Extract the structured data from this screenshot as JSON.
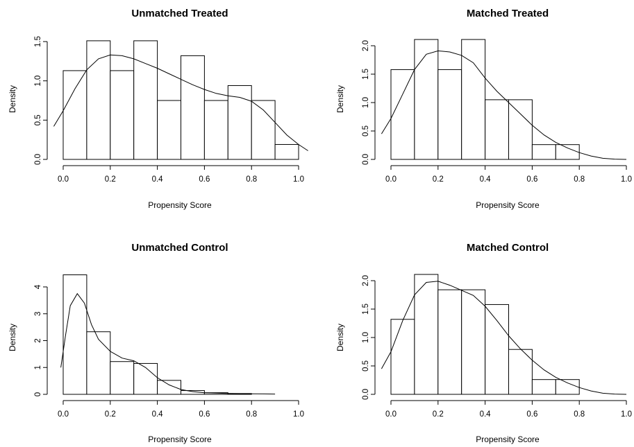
{
  "chart_data": [
    {
      "type": "bar",
      "title": "Unmatched Treated",
      "xlabel": "Propensity Score",
      "ylabel": "Density",
      "x_ticks": [
        "0.0",
        "0.2",
        "0.4",
        "0.6",
        "0.8",
        "1.0"
      ],
      "y_ticks": [
        "0.0",
        "0.5",
        "1.0",
        "1.5"
      ],
      "xlim": [
        0,
        1
      ],
      "ylim": [
        0,
        1.5
      ],
      "bins": [
        {
          "x0": 0.0,
          "x1": 0.1,
          "value": 1.13
        },
        {
          "x0": 0.1,
          "x1": 0.2,
          "value": 1.51
        },
        {
          "x0": 0.2,
          "x1": 0.3,
          "value": 1.13
        },
        {
          "x0": 0.3,
          "x1": 0.4,
          "value": 1.51
        },
        {
          "x0": 0.4,
          "x1": 0.5,
          "value": 0.75
        },
        {
          "x0": 0.5,
          "x1": 0.6,
          "value": 1.32
        },
        {
          "x0": 0.6,
          "x1": 0.7,
          "value": 0.75
        },
        {
          "x0": 0.7,
          "x1": 0.8,
          "value": 0.94
        },
        {
          "x0": 0.8,
          "x1": 0.9,
          "value": 0.75
        },
        {
          "x0": 0.9,
          "x1": 1.0,
          "value": 0.19
        }
      ],
      "density_curve": [
        [
          -0.04,
          0.42
        ],
        [
          0.0,
          0.62
        ],
        [
          0.05,
          0.9
        ],
        [
          0.1,
          1.14
        ],
        [
          0.15,
          1.28
        ],
        [
          0.2,
          1.33
        ],
        [
          0.25,
          1.32
        ],
        [
          0.3,
          1.28
        ],
        [
          0.35,
          1.22
        ],
        [
          0.4,
          1.16
        ],
        [
          0.45,
          1.09
        ],
        [
          0.5,
          1.02
        ],
        [
          0.55,
          0.95
        ],
        [
          0.6,
          0.89
        ],
        [
          0.65,
          0.84
        ],
        [
          0.7,
          0.81
        ],
        [
          0.75,
          0.79
        ],
        [
          0.8,
          0.74
        ],
        [
          0.85,
          0.63
        ],
        [
          0.9,
          0.47
        ],
        [
          0.95,
          0.31
        ],
        [
          1.0,
          0.19
        ],
        [
          1.04,
          0.11
        ]
      ]
    },
    {
      "type": "bar",
      "title": "Matched Treated",
      "xlabel": "Propensity Score",
      "ylabel": "Density",
      "x_ticks": [
        "0.0",
        "0.2",
        "0.4",
        "0.6",
        "0.8",
        "1.0"
      ],
      "y_ticks": [
        "0.0",
        "0.5",
        "1.0",
        "1.5",
        "2.0"
      ],
      "xlim": [
        0,
        1
      ],
      "ylim": [
        0,
        2.0
      ],
      "bins": [
        {
          "x0": 0.0,
          "x1": 0.1,
          "value": 1.58
        },
        {
          "x0": 0.1,
          "x1": 0.2,
          "value": 2.11
        },
        {
          "x0": 0.2,
          "x1": 0.3,
          "value": 1.58
        },
        {
          "x0": 0.3,
          "x1": 0.4,
          "value": 2.11
        },
        {
          "x0": 0.4,
          "x1": 0.5,
          "value": 1.05
        },
        {
          "x0": 0.5,
          "x1": 0.6,
          "value": 1.05
        },
        {
          "x0": 0.6,
          "x1": 0.7,
          "value": 0.26
        },
        {
          "x0": 0.7,
          "x1": 0.8,
          "value": 0.26
        }
      ],
      "density_curve": [
        [
          -0.04,
          0.45
        ],
        [
          0.0,
          0.72
        ],
        [
          0.05,
          1.15
        ],
        [
          0.1,
          1.58
        ],
        [
          0.15,
          1.85
        ],
        [
          0.2,
          1.91
        ],
        [
          0.25,
          1.89
        ],
        [
          0.3,
          1.83
        ],
        [
          0.35,
          1.7
        ],
        [
          0.4,
          1.43
        ],
        [
          0.45,
          1.2
        ],
        [
          0.5,
          1.0
        ],
        [
          0.55,
          0.8
        ],
        [
          0.6,
          0.6
        ],
        [
          0.65,
          0.43
        ],
        [
          0.7,
          0.3
        ],
        [
          0.75,
          0.2
        ],
        [
          0.8,
          0.12
        ],
        [
          0.85,
          0.06
        ],
        [
          0.9,
          0.02
        ],
        [
          0.95,
          0.005
        ],
        [
          1.0,
          0.0
        ]
      ]
    },
    {
      "type": "bar",
      "title": "Unmatched Control",
      "xlabel": "Propensity Score",
      "ylabel": "Density",
      "x_ticks": [
        "0.0",
        "0.2",
        "0.4",
        "0.6",
        "0.8",
        "1.0"
      ],
      "y_ticks": [
        "0",
        "1",
        "2",
        "3",
        "4"
      ],
      "xlim": [
        0,
        1
      ],
      "ylim": [
        0,
        4
      ],
      "bins": [
        {
          "x0": 0.0,
          "x1": 0.1,
          "value": 4.45
        },
        {
          "x0": 0.1,
          "x1": 0.2,
          "value": 2.33
        },
        {
          "x0": 0.2,
          "x1": 0.3,
          "value": 1.22
        },
        {
          "x0": 0.3,
          "x1": 0.4,
          "value": 1.15
        },
        {
          "x0": 0.4,
          "x1": 0.5,
          "value": 0.52
        },
        {
          "x0": 0.5,
          "x1": 0.6,
          "value": 0.14
        },
        {
          "x0": 0.6,
          "x1": 0.7,
          "value": 0.06
        },
        {
          "x0": 0.7,
          "x1": 0.8,
          "value": 0.03
        }
      ],
      "density_curve": [
        [
          -0.01,
          1.0
        ],
        [
          0.01,
          2.2
        ],
        [
          0.03,
          3.3
        ],
        [
          0.06,
          3.75
        ],
        [
          0.09,
          3.4
        ],
        [
          0.12,
          2.6
        ],
        [
          0.15,
          2.05
        ],
        [
          0.2,
          1.6
        ],
        [
          0.25,
          1.35
        ],
        [
          0.3,
          1.25
        ],
        [
          0.35,
          1.0
        ],
        [
          0.4,
          0.62
        ],
        [
          0.45,
          0.35
        ],
        [
          0.5,
          0.18
        ],
        [
          0.55,
          0.1
        ],
        [
          0.6,
          0.06
        ],
        [
          0.7,
          0.03
        ],
        [
          0.8,
          0.02
        ],
        [
          0.9,
          0.01
        ]
      ]
    },
    {
      "type": "bar",
      "title": "Matched Control",
      "xlabel": "Propensity Score",
      "ylabel": "Density",
      "x_ticks": [
        "0.0",
        "0.2",
        "0.4",
        "0.6",
        "0.8",
        "1.0"
      ],
      "y_ticks": [
        "0.0",
        "0.5",
        "1.0",
        "1.5",
        "2.0"
      ],
      "xlim": [
        0,
        1
      ],
      "ylim": [
        0,
        2.0
      ],
      "bins": [
        {
          "x0": 0.0,
          "x1": 0.1,
          "value": 1.32
        },
        {
          "x0": 0.1,
          "x1": 0.2,
          "value": 2.11
        },
        {
          "x0": 0.2,
          "x1": 0.3,
          "value": 1.84
        },
        {
          "x0": 0.3,
          "x1": 0.4,
          "value": 1.84
        },
        {
          "x0": 0.4,
          "x1": 0.5,
          "value": 1.58
        },
        {
          "x0": 0.5,
          "x1": 0.6,
          "value": 0.79
        },
        {
          "x0": 0.6,
          "x1": 0.7,
          "value": 0.26
        },
        {
          "x0": 0.7,
          "x1": 0.8,
          "value": 0.26
        }
      ],
      "density_curve": [
        [
          -0.04,
          0.45
        ],
        [
          0.0,
          0.75
        ],
        [
          0.05,
          1.3
        ],
        [
          0.1,
          1.75
        ],
        [
          0.15,
          1.97
        ],
        [
          0.2,
          1.99
        ],
        [
          0.25,
          1.92
        ],
        [
          0.3,
          1.83
        ],
        [
          0.35,
          1.74
        ],
        [
          0.4,
          1.55
        ],
        [
          0.45,
          1.3
        ],
        [
          0.5,
          1.03
        ],
        [
          0.55,
          0.8
        ],
        [
          0.6,
          0.6
        ],
        [
          0.65,
          0.43
        ],
        [
          0.7,
          0.3
        ],
        [
          0.75,
          0.2
        ],
        [
          0.8,
          0.12
        ],
        [
          0.85,
          0.06
        ],
        [
          0.9,
          0.02
        ],
        [
          0.95,
          0.005
        ],
        [
          1.0,
          0.0
        ]
      ]
    }
  ]
}
